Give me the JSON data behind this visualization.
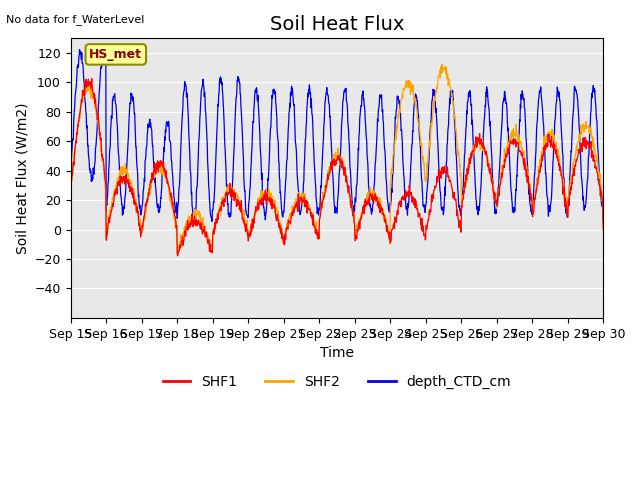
{
  "title": "Soil Heat Flux",
  "top_left_text": "No data for f_WaterLevel",
  "annotation_text": "HS_met",
  "xlabel": "Time",
  "ylabel": "Soil Heat Flux (W/m2)",
  "ylim": [
    -60,
    130
  ],
  "yticks": [
    -40,
    -20,
    0,
    20,
    40,
    60,
    80,
    100,
    120
  ],
  "x_tick_labels": [
    "Sep 15",
    "Sep 16",
    "Sep 17",
    "Sep 18",
    "Sep 19",
    "Sep 20",
    "Sep 21",
    "Sep 22",
    "Sep 23",
    "Sep 24",
    "Sep 25",
    "Sep 26",
    "Sep 27",
    "Sep 28",
    "Sep 29",
    "Sep 30"
  ],
  "series_colors": {
    "SHF1": "#FF0000",
    "SHF2": "#FFA500",
    "depth_CTD_cm": "#0000EE"
  },
  "axes_facecolor": "#E8E8E8",
  "fig_facecolor": "#FFFFFF",
  "grid_color": "#FFFFFF",
  "annotation_box_facecolor": "#FFFF99",
  "annotation_box_edgecolor": "#8B8B00",
  "title_fontsize": 14,
  "label_fontsize": 10,
  "tick_fontsize": 9,
  "legend_fontsize": 10
}
